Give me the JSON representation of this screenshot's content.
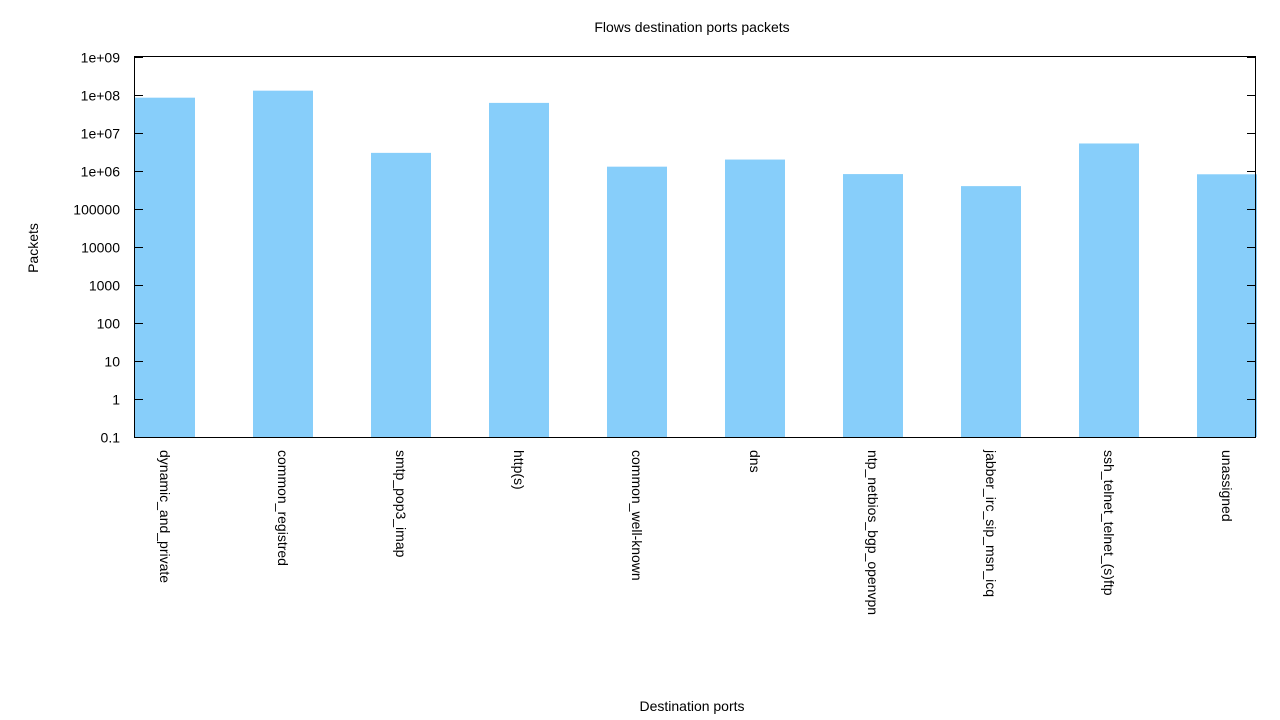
{
  "colors": {
    "bar": "#87cefa",
    "axis": "#000000",
    "background": "#ffffff"
  },
  "chart_data": {
    "type": "bar",
    "title": "Flows destination ports packets",
    "xlabel": "Destination ports",
    "ylabel": "Packets",
    "yscale": "log",
    "ylim": [
      0.1,
      1000000000
    ],
    "grid": false,
    "legend": "none",
    "yticks": [
      0.1,
      1,
      10,
      100,
      1000,
      10000,
      100000,
      1000000,
      10000000,
      100000000,
      1000000000
    ],
    "ytick_labels": [
      "0.1",
      "1",
      "10",
      "100",
      "1000",
      "10000",
      "100000",
      "1e+06",
      "1e+07",
      "1e+08",
      "1e+09"
    ],
    "categories": [
      "dynamic_and_private",
      "common_registred",
      "smtp_pop3_imap",
      "http(s)",
      "common_well-known",
      "dns",
      "ntp_netbios_bgp_openvpn",
      "jabber_irc_sip_msn_icq",
      "ssh_telnet_telnet_(s)ftp",
      "unassigned"
    ],
    "values": [
      85000000,
      130000000,
      3000000,
      62000000,
      1300000,
      2000000,
      830000,
      400000,
      5300000,
      820000
    ]
  }
}
